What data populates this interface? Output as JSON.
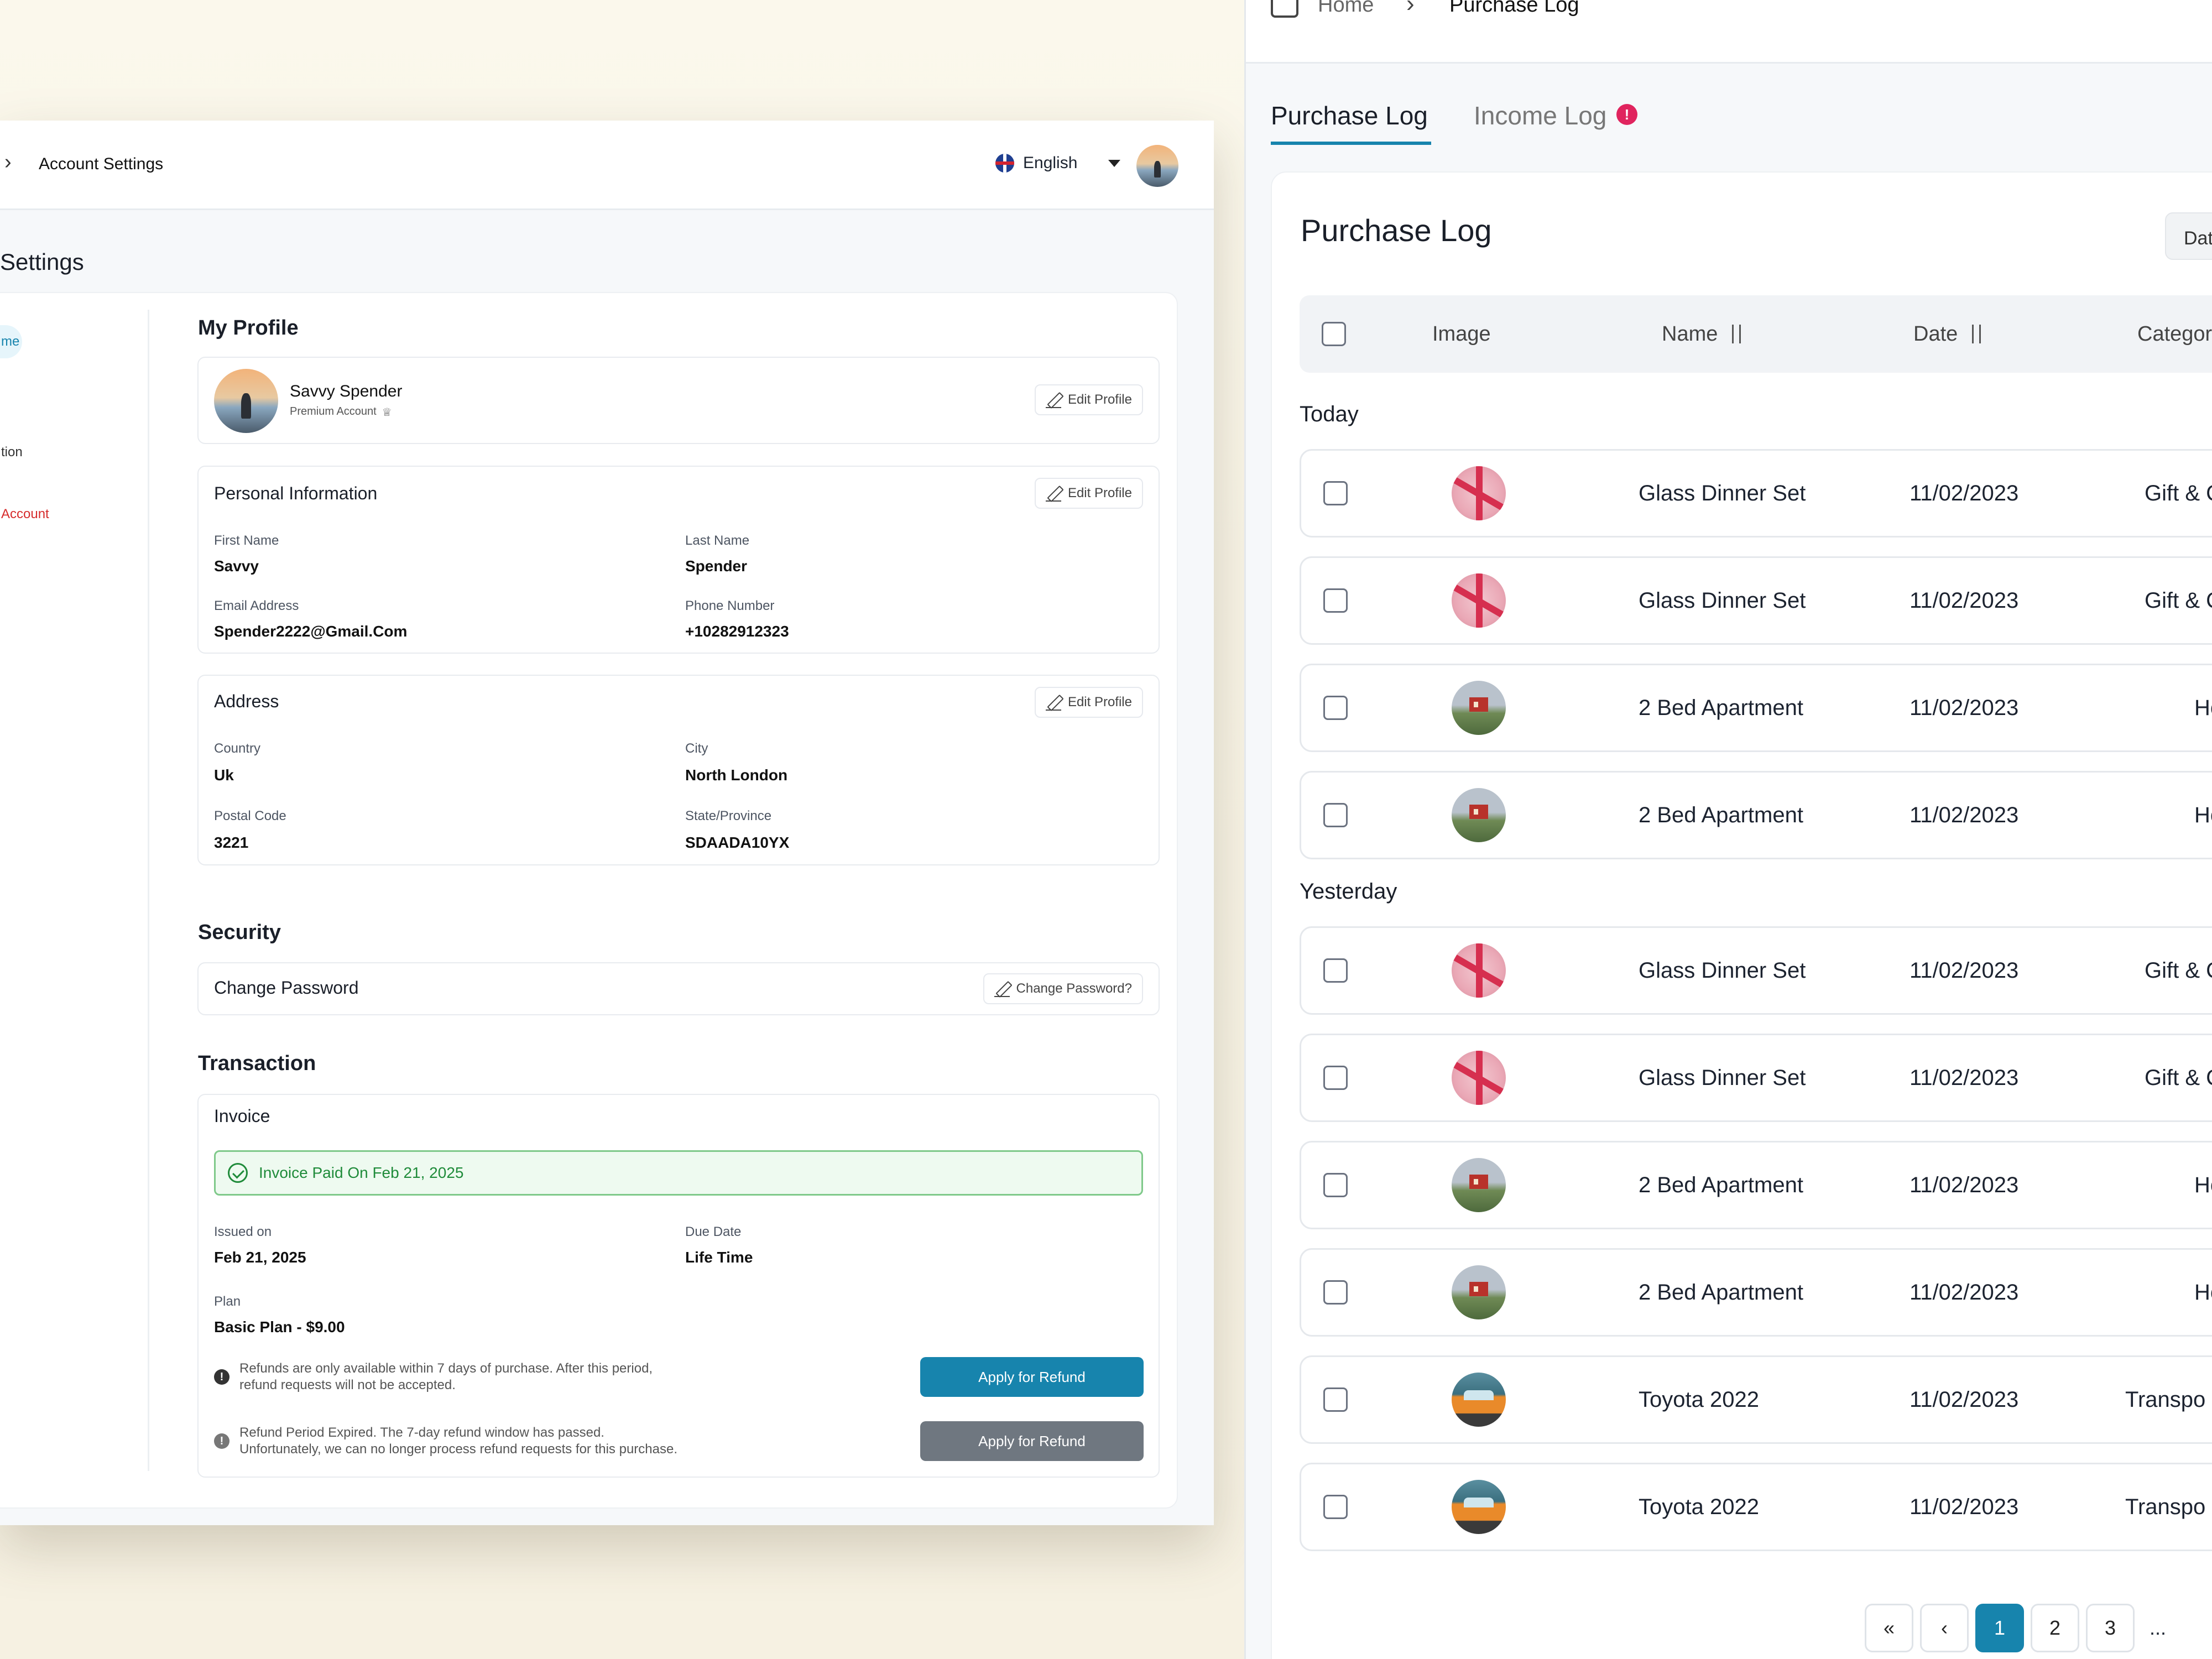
{
  "left": {
    "breadcrumb": {
      "chevron": "›",
      "current": "Account Settings"
    },
    "language": "English",
    "page_title": "Settings",
    "sidebar": [
      "me",
      "",
      "tion",
      "Account"
    ],
    "profile": {
      "title": "My Profile",
      "name": "Savvy Spender",
      "badge": "Premium Account",
      "badge_icon": "♕",
      "edit": "Edit Profile"
    },
    "personal": {
      "title": "Personal Information",
      "edit": "Edit Profile",
      "fields": [
        {
          "label": "First Name",
          "value": "Savvy"
        },
        {
          "label": "Last Name",
          "value": "Spender"
        },
        {
          "label": "Email Address",
          "value": "Spender2222@Gmail.Com"
        },
        {
          "label": "Phone Number",
          "value": "+10282912323"
        }
      ]
    },
    "address": {
      "title": "Address",
      "edit": "Edit Profile",
      "fields": [
        {
          "label": "Country",
          "value": "Uk"
        },
        {
          "label": "City",
          "value": "North London"
        },
        {
          "label": "Postal Code",
          "value": "3221"
        },
        {
          "label": "State/Province",
          "value": "SDAADA10YX"
        }
      ]
    },
    "security": {
      "title": "Security",
      "row": "Change Password",
      "button": "Change Password?"
    },
    "transaction": {
      "title": "Transaction",
      "invoice_title": "Invoice",
      "paid_banner": "Invoice Paid On Feb 21, 2025",
      "fields": [
        {
          "label": "Issued on",
          "value": "Feb 21, 2025"
        },
        {
          "label": "Due Date",
          "value": "Life Time"
        },
        {
          "label": "Plan",
          "value": "Basic Plan - $9.00"
        }
      ],
      "note1": [
        "Refunds are only available within 7 days of purchase. After this period,",
        "refund requests will not be accepted."
      ],
      "note2": [
        "Refund Period Expired. The 7-day refund window has passed.",
        "Unfortunately, we can no longer process refund requests for this purchase."
      ],
      "refund_button": "Apply for Refund",
      "refund_button_disabled": "Apply for Refund",
      "accent": "#1784ad",
      "disabled_color": "#6f7780"
    }
  },
  "right": {
    "breadcrumb": {
      "home": "Home",
      "chevron": "›",
      "current": "Purchase Log"
    },
    "tabs": [
      {
        "label": "Purchase Log",
        "active": true
      },
      {
        "label": "Income Log",
        "alert": "!"
      }
    ],
    "title": "Purchase Log",
    "date_button": "Dat",
    "columns": [
      "Image",
      "Name",
      "Date",
      "Categor"
    ],
    "groups": [
      {
        "label": "Today",
        "rows": [
          {
            "img": "gift",
            "name": "Glass Dinner Set",
            "date": "11/02/2023",
            "category": "Gift & C"
          },
          {
            "img": "gift",
            "name": "Glass Dinner Set",
            "date": "11/02/2023",
            "category": "Gift & C"
          },
          {
            "img": "house",
            "name": "2 Bed Apartment",
            "date": "11/02/2023",
            "category": "Hou"
          },
          {
            "img": "house",
            "name": "2 Bed Apartment",
            "date": "11/02/2023",
            "category": "Hou"
          }
        ]
      },
      {
        "label": "Yesterday",
        "rows": [
          {
            "img": "gift",
            "name": "Glass Dinner Set",
            "date": "11/02/2023",
            "category": "Gift & C"
          },
          {
            "img": "gift",
            "name": "Glass Dinner Set",
            "date": "11/02/2023",
            "category": "Gift & C"
          },
          {
            "img": "house",
            "name": "2 Bed Apartment",
            "date": "11/02/2023",
            "category": "Hou"
          },
          {
            "img": "house",
            "name": "2 Bed Apartment",
            "date": "11/02/2023",
            "category": "Hou"
          },
          {
            "img": "car",
            "name": "Toyota 2022",
            "date": "11/02/2023",
            "category": "Transpo"
          },
          {
            "img": "car",
            "name": "Toyota 2022",
            "date": "11/02/2023",
            "category": "Transpo"
          }
        ]
      }
    ],
    "pagination": {
      "first": "«",
      "prev": "‹",
      "pages": [
        "1",
        "2",
        "3"
      ],
      "current": "1",
      "ellipsis": "...",
      "accent": "#1784ad"
    },
    "tab_accent": "#1784ad",
    "alert_color": "#e0245e"
  }
}
